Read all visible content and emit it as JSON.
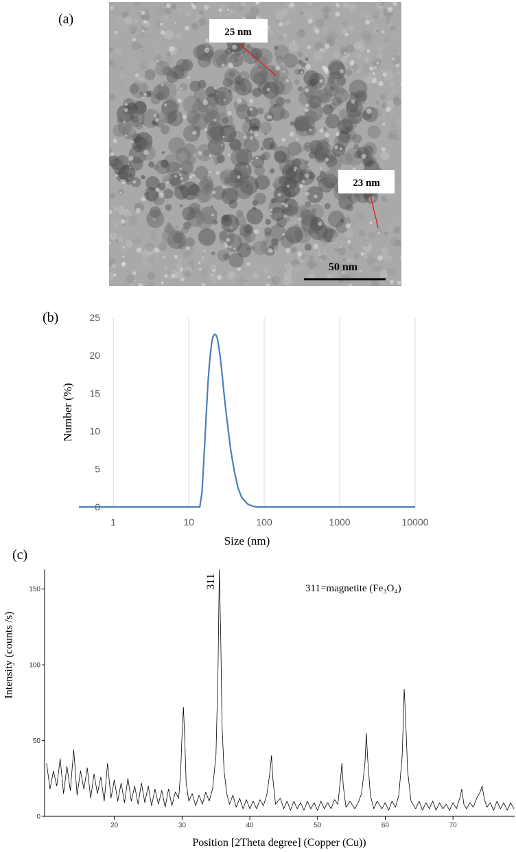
{
  "image": {
    "label": "(a)",
    "annotations": [
      "25 nm",
      "23 nm"
    ],
    "scale_bar": "50 nm"
  },
  "chart_data": [
    {
      "type": "line",
      "panel_label": "(b)",
      "x_label": "Size (nm)",
      "y_label": "Number (%)",
      "log_x": true,
      "grid": "x",
      "xlim": [
        0.35,
        10000
      ],
      "xticks": [
        1,
        10,
        100,
        1000,
        10000
      ],
      "ylim": [
        0,
        25
      ],
      "yticks": [
        0,
        5,
        10,
        15,
        20,
        25
      ],
      "x": [
        0.35,
        10,
        13,
        14,
        15,
        16,
        17,
        18,
        19,
        20,
        21,
        22,
        23,
        24,
        26,
        28,
        30,
        33,
        36,
        40,
        45,
        50,
        60,
        70,
        80,
        100,
        10000
      ],
      "series": [
        {
          "color": "#4a7ebb",
          "values": [
            0,
            0,
            0,
            0,
            2,
            7,
            12,
            16.5,
            19.5,
            21.5,
            22.5,
            22.8,
            22.7,
            22.2,
            20,
            17,
            14,
            10.5,
            7.5,
            4.8,
            2.5,
            1.3,
            0.4,
            0.1,
            0,
            0,
            0
          ]
        }
      ]
    },
    {
      "type": "line",
      "panel_label": "(c)",
      "x_label": "Position [2Theta degree] (Copper (Cu))",
      "y_label": "Intensity (counts /s)",
      "annotations": [
        "311",
        "311=magnetite (Fe₃O₄)"
      ],
      "log_x": false,
      "grid": "none",
      "xlim": [
        9.7,
        79.1
      ],
      "xticks": [
        20,
        30,
        40,
        50,
        60,
        70
      ],
      "ylim": [
        0,
        163
      ],
      "yticks": [
        0,
        50,
        100,
        150
      ],
      "x": [
        10,
        10.5,
        11,
        11.5,
        12,
        12.5,
        13,
        13.5,
        14,
        14.5,
        15,
        15.5,
        16,
        16.5,
        17,
        17.5,
        18,
        18.5,
        19,
        19.5,
        20,
        20.5,
        21,
        21.5,
        22,
        22.5,
        23,
        23.5,
        24,
        24.5,
        25,
        25.5,
        26,
        26.5,
        27,
        27.5,
        28,
        28.5,
        29,
        29.5,
        29.8,
        30,
        30.2,
        30.4,
        30.6,
        31,
        31.5,
        32,
        32.5,
        33,
        33.5,
        34,
        34.5,
        35,
        35.3,
        35.5,
        35.7,
        35.9,
        36.2,
        36.6,
        37,
        37.5,
        38,
        38.5,
        39,
        39.5,
        40,
        40.5,
        41,
        41.5,
        42,
        42.5,
        43,
        43.2,
        43.4,
        43.8,
        44.5,
        45,
        45.5,
        46,
        46.5,
        47,
        47.5,
        48,
        48.5,
        49,
        49.5,
        50,
        50.5,
        51,
        51.5,
        52,
        52.5,
        53,
        53.4,
        53.6,
        53.8,
        54.2,
        54.8,
        55.5,
        56,
        56.5,
        57,
        57.2,
        57.4,
        57.8,
        58.3,
        58.8,
        59.5,
        60,
        60.5,
        61,
        61.5,
        62,
        62.5,
        62.8,
        63,
        63.3,
        63.8,
        64.5,
        65,
        65.5,
        66,
        66.5,
        67,
        67.5,
        68,
        68.5,
        69,
        69.5,
        70,
        70.5,
        71,
        71.3,
        71.6,
        72,
        72.5,
        73,
        73.5,
        74,
        74.3,
        74.6,
        75,
        75.5,
        76,
        76.5,
        77,
        77.5,
        78,
        78.5,
        79
      ],
      "series": [
        {
          "color": "#000000",
          "values": [
            35,
            18,
            30,
            20,
            38,
            15,
            33,
            17,
            44,
            14,
            30,
            18,
            32,
            12,
            28,
            15,
            26,
            10,
            35,
            12,
            24,
            10,
            22,
            9,
            25,
            10,
            20,
            8,
            22,
            9,
            20,
            7,
            18,
            8,
            17,
            6,
            18,
            7,
            16,
            12,
            30,
            55,
            72,
            50,
            22,
            10,
            15,
            7,
            14,
            8,
            16,
            10,
            18,
            40,
            95,
            163,
            120,
            60,
            30,
            15,
            8,
            14,
            6,
            12,
            5,
            11,
            5,
            10,
            5,
            11,
            7,
            14,
            30,
            40,
            25,
            8,
            12,
            5,
            10,
            4,
            10,
            5,
            9,
            4,
            10,
            5,
            9,
            4,
            10,
            5,
            9,
            5,
            11,
            8,
            25,
            35,
            20,
            6,
            10,
            5,
            9,
            15,
            35,
            55,
            38,
            14,
            5,
            10,
            5,
            9,
            4,
            10,
            6,
            14,
            40,
            84,
            65,
            30,
            10,
            5,
            10,
            4,
            9,
            5,
            10,
            4,
            9,
            5,
            8,
            4,
            9,
            5,
            12,
            18,
            8,
            5,
            9,
            6,
            12,
            16,
            20,
            12,
            6,
            9,
            4,
            10,
            5,
            9,
            4,
            9,
            5
          ]
        }
      ]
    }
  ]
}
